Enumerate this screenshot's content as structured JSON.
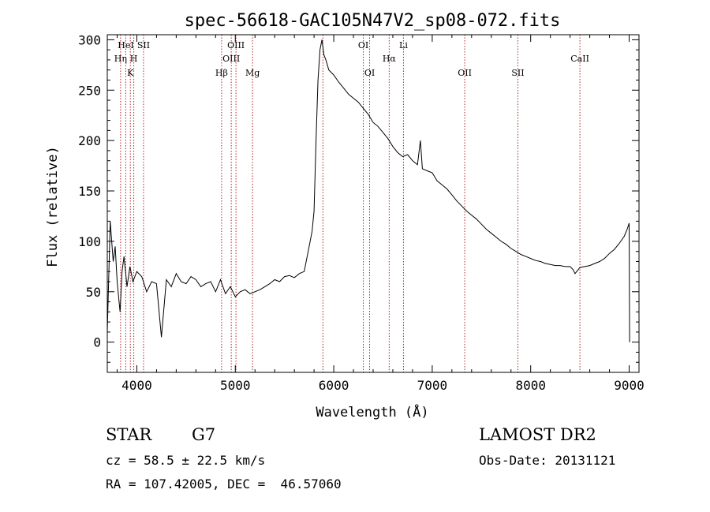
{
  "chart_data": {
    "type": "line",
    "title": "spec-56618-GAC105N47V2_sp08-072.fits",
    "xlabel": "Wavelength (Å)",
    "ylabel": "Flux (relative)",
    "xlim": [
      3700,
      9100
    ],
    "ylim": [
      -30,
      305
    ],
    "x_ticks": [
      4000,
      5000,
      6000,
      7000,
      8000,
      9000
    ],
    "x_tick_labels": [
      "4000",
      "5000",
      "6000",
      "7000",
      "8000",
      "9000"
    ],
    "y_ticks": [
      0,
      50,
      100,
      150,
      200,
      250,
      300
    ],
    "y_tick_labels": [
      "0",
      "50",
      "100",
      "150",
      "200",
      "250",
      "300"
    ],
    "grid": false,
    "line_color": "#000000",
    "marker_color": "#b22222",
    "series": [
      {
        "x": [
          3700,
          3730,
          3760,
          3780,
          3800,
          3830,
          3850,
          3870,
          3900,
          3930,
          3960,
          4000,
          4050,
          4100,
          4150,
          4200,
          4250,
          4300,
          4350,
          4400,
          4450,
          4500,
          4550,
          4600,
          4650,
          4700,
          4750,
          4800,
          4850,
          4900,
          4950,
          5000,
          5050,
          5100,
          5150,
          5200,
          5250,
          5300,
          5350,
          5400,
          5450,
          5500,
          5550,
          5600,
          5650,
          5700,
          5750,
          5780,
          5800,
          5820,
          5840,
          5860,
          5880,
          5900,
          5920,
          5950,
          6000,
          6050,
          6100,
          6150,
          6200,
          6250,
          6300,
          6350,
          6400,
          6450,
          6500,
          6550,
          6600,
          6650,
          6700,
          6750,
          6800,
          6850,
          6880,
          6900,
          6950,
          7000,
          7050,
          7100,
          7150,
          7200,
          7250,
          7300,
          7350,
          7400,
          7450,
          7500,
          7550,
          7600,
          7650,
          7700,
          7750,
          7800,
          7850,
          7900,
          7950,
          8000,
          8050,
          8100,
          8150,
          8200,
          8250,
          8300,
          8350,
          8400,
          8430,
          8450,
          8500,
          8550,
          8600,
          8650,
          8700,
          8750,
          8800,
          8850,
          8900,
          8950,
          8980,
          9000,
          9005
        ],
        "y": [
          10,
          120,
          80,
          95,
          60,
          30,
          70,
          85,
          55,
          75,
          60,
          70,
          65,
          50,
          60,
          58,
          5,
          62,
          55,
          68,
          60,
          58,
          65,
          62,
          55,
          58,
          60,
          50,
          62,
          48,
          55,
          45,
          50,
          52,
          48,
          50,
          52,
          55,
          58,
          62,
          60,
          65,
          66,
          64,
          68,
          70,
          95,
          110,
          130,
          200,
          260,
          290,
          300,
          285,
          280,
          270,
          265,
          258,
          252,
          246,
          242,
          238,
          232,
          226,
          218,
          214,
          208,
          202,
          194,
          188,
          184,
          186,
          180,
          176,
          200,
          172,
          170,
          168,
          160,
          156,
          152,
          146,
          140,
          135,
          130,
          126,
          122,
          117,
          112,
          108,
          104,
          100,
          97,
          93,
          90,
          87,
          85,
          83,
          81,
          80,
          78,
          77,
          76,
          76,
          75,
          75,
          72,
          68,
          74,
          75,
          76,
          78,
          80,
          83,
          88,
          92,
          98,
          105,
          112,
          118,
          0
        ]
      }
    ],
    "line_markers": [
      {
        "label": "HeI",
        "x": 3888,
        "row": 0
      },
      {
        "label": "SII",
        "x": 4068,
        "row": 0
      },
      {
        "label": "Hη",
        "x": 3835,
        "row": 1
      },
      {
        "label": "H",
        "x": 3969,
        "row": 1
      },
      {
        "label": "K",
        "x": 3934,
        "row": 2
      },
      {
        "label": "OIII",
        "x": 5007,
        "row": 0
      },
      {
        "label": "OIII",
        "x": 4959,
        "row": 1
      },
      {
        "label": "Hβ",
        "x": 4861,
        "row": 2
      },
      {
        "label": "Mg",
        "x": 5175,
        "row": 2
      },
      {
        "label": "OI",
        "x": 6300,
        "row": 0
      },
      {
        "label": "Li",
        "x": 6708,
        "row": 0
      },
      {
        "label": "Hα",
        "x": 6563,
        "row": 1
      },
      {
        "label": "OI",
        "x": 6364,
        "row": 2
      },
      {
        "label": "OII",
        "x": 7330,
        "row": 2
      },
      {
        "label": "SII",
        "x": 7870,
        "row": 2
      },
      {
        "label": "CaII",
        "x": 8500,
        "row": 1
      }
    ],
    "marker_lines_x": [
      3835,
      3888,
      3934,
      3969,
      4068,
      4861,
      4959,
      5007,
      5175,
      5890,
      6300,
      6364,
      6563,
      6708,
      7330,
      7870,
      8500
    ]
  },
  "info": {
    "object_class": "STAR",
    "subclass": "G7",
    "survey": "LAMOST DR2",
    "cz": "cz = 58.5 ± 22.5 km/s",
    "obs_date": "Obs-Date: 20131121",
    "coords": "RA = 107.42005, DEC =  46.57060"
  }
}
